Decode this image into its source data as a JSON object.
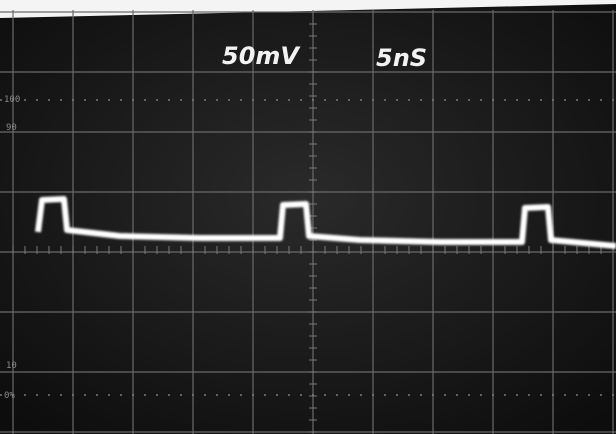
{
  "screen": {
    "volts_per_div": "50mV",
    "time_per_div": "5nS",
    "graticule_labels": [
      "100",
      "90",
      "10",
      "0%"
    ]
  }
}
